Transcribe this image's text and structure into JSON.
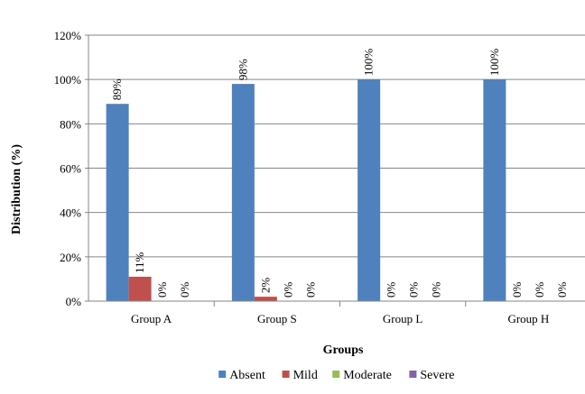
{
  "chart_data": {
    "type": "bar",
    "title": "",
    "xlabel": "Groups",
    "ylabel": "Distribution (%)",
    "ylim": [
      0,
      120
    ],
    "yticks": [
      0,
      20,
      40,
      60,
      80,
      100,
      120
    ],
    "ytick_labels": [
      "0%",
      "20%",
      "40%",
      "60%",
      "80%",
      "100%",
      "120%"
    ],
    "categories": [
      "Group A",
      "Group S",
      "Group L",
      "Group H"
    ],
    "series": [
      {
        "name": "Absent",
        "color": "#4F81BD",
        "values": [
          89,
          98,
          100,
          100
        ],
        "labels": [
          "89%",
          "98%",
          "100%",
          "100%"
        ]
      },
      {
        "name": "Mild",
        "color": "#C0504D",
        "values": [
          11,
          2,
          0,
          0
        ],
        "labels": [
          "11%",
          "2%",
          "0%",
          "0%"
        ]
      },
      {
        "name": "Moderate",
        "color": "#9BBB59",
        "values": [
          0,
          0,
          0,
          0
        ],
        "labels": [
          "0%",
          "0%",
          "0%",
          "0%"
        ]
      },
      {
        "name": "Severe",
        "color": "#8064A2",
        "values": [
          0,
          0,
          0,
          0
        ],
        "labels": [
          "0%",
          "0%",
          "0%",
          "0%"
        ]
      }
    ],
    "grid": true,
    "legend": "bottom"
  }
}
